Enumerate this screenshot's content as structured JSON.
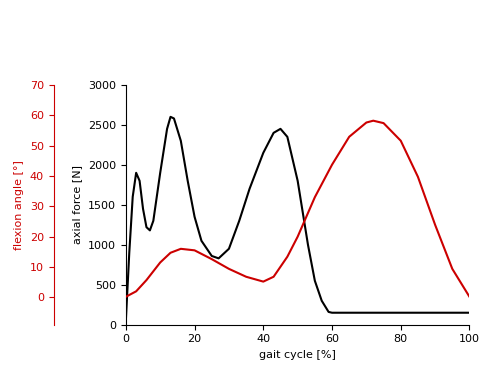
{
  "chart_data": {
    "type": "line",
    "x_label": "gait cycle [%]",
    "y_label": "axial force [N]",
    "y2_label": "flexion angle [°]",
    "xlim": [
      0,
      100
    ],
    "xticks": [
      0,
      20,
      40,
      60,
      80,
      100
    ],
    "ylim": [
      0,
      3000
    ],
    "yticks": [
      0,
      500,
      1000,
      1500,
      2000,
      2500,
      3000
    ],
    "y2lim": [
      -9,
      70
    ],
    "y2ticks": [
      0,
      10,
      20,
      30,
      40,
      50,
      60,
      70
    ],
    "grid": false,
    "series": [
      {
        "name": "axial force",
        "color": "#000000",
        "line_style": "solid",
        "x": [
          0,
          1,
          2,
          3,
          4,
          5,
          6,
          7,
          8,
          10,
          12,
          13,
          14,
          16,
          18,
          20,
          22,
          25,
          27,
          30,
          33,
          36,
          40,
          43,
          45,
          47,
          50,
          53,
          55,
          57,
          59,
          60,
          70,
          80,
          90,
          100
        ],
        "values": [
          50,
          900,
          1600,
          1900,
          1800,
          1450,
          1220,
          1180,
          1300,
          1900,
          2450,
          2600,
          2580,
          2300,
          1800,
          1350,
          1050,
          860,
          830,
          950,
          1300,
          1700,
          2150,
          2400,
          2450,
          2350,
          1800,
          1000,
          550,
          300,
          160,
          150,
          150,
          150,
          150,
          150
        ]
      },
      {
        "name": "flexion angle",
        "color": "#cc0000",
        "line_style": "solid",
        "axis": "y2",
        "x": [
          0,
          3,
          6,
          10,
          13,
          16,
          20,
          25,
          30,
          35,
          40,
          43,
          47,
          50,
          55,
          60,
          65,
          70,
          72,
          75,
          80,
          85,
          90,
          95,
          100
        ],
        "values": [
          0.2,
          2,
          5.7,
          11.5,
          14.7,
          16,
          15.5,
          12.6,
          9.4,
          6.8,
          5.2,
          6.8,
          13.4,
          20,
          33,
          43.7,
          52.9,
          57.6,
          58.2,
          57.4,
          51.6,
          39.7,
          23.9,
          9.4,
          0.2
        ]
      }
    ]
  }
}
